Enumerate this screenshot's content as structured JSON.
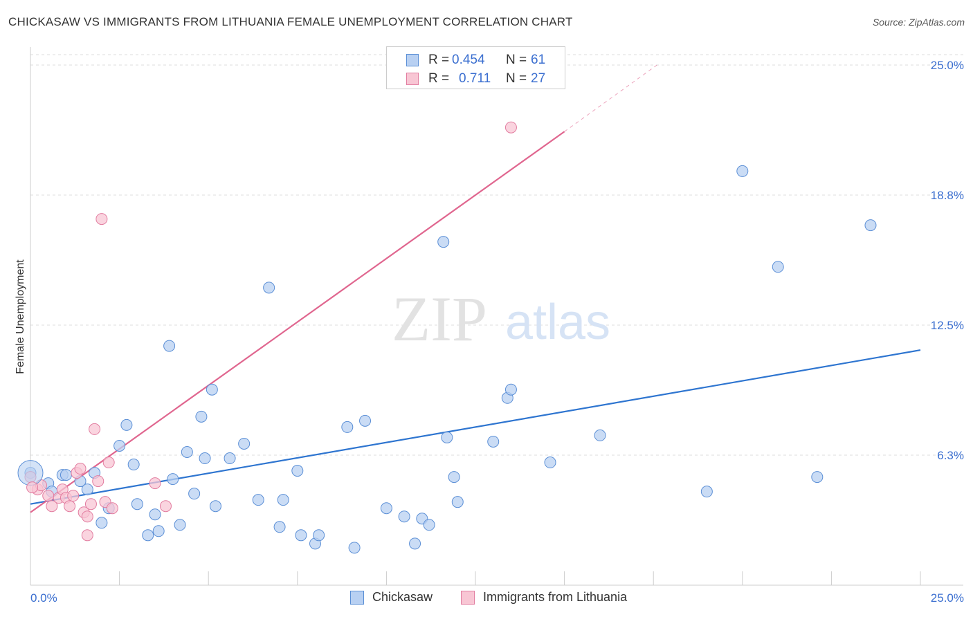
{
  "title": "CHICKASAW VS IMMIGRANTS FROM LITHUANIA FEMALE UNEMPLOYMENT CORRELATION CHART",
  "source": "Source: ZipAtlas.com",
  "watermark": {
    "zip": "ZIP",
    "atlas": "atlas"
  },
  "legend": {
    "rows": [
      {
        "r_label": "R =",
        "r_value": "0.454",
        "n_label": "N =",
        "n_value": "61",
        "fill": "#b8d0f2",
        "stroke": "#5b8fd6"
      },
      {
        "r_label": "R =",
        "r_value": "0.711",
        "n_label": "N =",
        "n_value": "27",
        "fill": "#f8c6d4",
        "stroke": "#e27da0"
      }
    ]
  },
  "bottom_legend": [
    {
      "label": "Chickasaw",
      "fill": "#b8d0f2",
      "stroke": "#5b8fd6"
    },
    {
      "label": "Immigrants from Lithuania",
      "fill": "#f8c6d4",
      "stroke": "#e27da0"
    }
  ],
  "chart_data": {
    "type": "scatter",
    "title": "CHICKASAW VS IMMIGRANTS FROM LITHUANIA FEMALE UNEMPLOYMENT CORRELATION CHART",
    "xlabel": "",
    "ylabel": "Female Unemployment",
    "xlim": [
      0,
      25
    ],
    "ylim": [
      0,
      25
    ],
    "x_tick_labels": [
      {
        "value": 0,
        "label": "0.0%"
      },
      {
        "value": 25,
        "label": "25.0%"
      }
    ],
    "y_tick_labels": [
      {
        "value": 6.25,
        "label": "6.3%"
      },
      {
        "value": 12.5,
        "label": "12.5%"
      },
      {
        "value": 18.75,
        "label": "18.8%"
      },
      {
        "value": 25,
        "label": "25.0%"
      }
    ],
    "x_minor_ticks": [
      2.5,
      5,
      7.5,
      10,
      12.5,
      15,
      17.5,
      20,
      22.5,
      25
    ],
    "grid": true,
    "legend_position": "top-center",
    "series": [
      {
        "name": "Chickasaw",
        "color": "#5b8fd6",
        "fill": "#b8d0f2",
        "trendline": {
          "x": [
            0,
            25
          ],
          "y": [
            3.9,
            11.3
          ],
          "color": "#2e75d0"
        },
        "points": [
          [
            0.0,
            5.4
          ],
          [
            0.5,
            4.9
          ],
          [
            0.9,
            5.3
          ],
          [
            1.0,
            5.3
          ],
          [
            0.6,
            4.5
          ],
          [
            1.4,
            5.0
          ],
          [
            1.6,
            4.6
          ],
          [
            1.8,
            5.4
          ],
          [
            2.0,
            3.0
          ],
          [
            2.2,
            3.7
          ],
          [
            2.5,
            6.7
          ],
          [
            2.7,
            7.7
          ],
          [
            2.9,
            5.8
          ],
          [
            3.0,
            3.9
          ],
          [
            3.3,
            2.4
          ],
          [
            3.5,
            3.4
          ],
          [
            3.6,
            2.6
          ],
          [
            3.9,
            11.5
          ],
          [
            4.0,
            5.1
          ],
          [
            4.2,
            2.9
          ],
          [
            4.4,
            6.4
          ],
          [
            4.6,
            4.4
          ],
          [
            4.8,
            8.1
          ],
          [
            4.9,
            6.1
          ],
          [
            5.1,
            9.4
          ],
          [
            5.2,
            3.8
          ],
          [
            5.6,
            6.1
          ],
          [
            6.0,
            6.8
          ],
          [
            6.4,
            4.1
          ],
          [
            6.7,
            14.3
          ],
          [
            7.0,
            2.8
          ],
          [
            7.1,
            4.1
          ],
          [
            7.5,
            5.5
          ],
          [
            7.6,
            2.4
          ],
          [
            8.0,
            2.0
          ],
          [
            8.1,
            2.4
          ],
          [
            8.9,
            7.6
          ],
          [
            9.1,
            1.8
          ],
          [
            9.4,
            7.9
          ],
          [
            10.0,
            3.7
          ],
          [
            10.5,
            3.3
          ],
          [
            10.8,
            2.0
          ],
          [
            11.0,
            3.2
          ],
          [
            11.2,
            2.9
          ],
          [
            11.6,
            16.5
          ],
          [
            11.7,
            7.1
          ],
          [
            11.9,
            5.2
          ],
          [
            12.0,
            4.0
          ],
          [
            13.0,
            6.9
          ],
          [
            13.4,
            9.0
          ],
          [
            13.5,
            9.4
          ],
          [
            14.6,
            5.9
          ],
          [
            16.0,
            7.2
          ],
          [
            19.0,
            4.5
          ],
          [
            20.0,
            19.9
          ],
          [
            21.0,
            15.3
          ],
          [
            22.1,
            5.2
          ],
          [
            23.6,
            17.3
          ]
        ]
      },
      {
        "name": "Immigrants from Lithuania",
        "color": "#e27da0",
        "fill": "#f8c6d4",
        "trendline": {
          "x": [
            0,
            15
          ],
          "y": [
            3.5,
            21.8
          ],
          "color": "#e0668f",
          "dashed_extension": {
            "x": [
              15,
              17.6
            ],
            "y": [
              21.8,
              25.0
            ]
          }
        },
        "points": [
          [
            0.0,
            5.2
          ],
          [
            0.2,
            4.6
          ],
          [
            0.3,
            4.8
          ],
          [
            0.5,
            4.3
          ],
          [
            0.6,
            3.8
          ],
          [
            0.8,
            4.2
          ],
          [
            0.9,
            4.6
          ],
          [
            1.0,
            4.2
          ],
          [
            1.1,
            3.8
          ],
          [
            1.2,
            4.3
          ],
          [
            1.3,
            5.4
          ],
          [
            1.4,
            5.6
          ],
          [
            1.5,
            3.5
          ],
          [
            1.6,
            2.4
          ],
          [
            1.6,
            3.3
          ],
          [
            1.7,
            3.9
          ],
          [
            1.8,
            7.5
          ],
          [
            1.9,
            5.0
          ],
          [
            2.0,
            17.6
          ],
          [
            2.1,
            4.0
          ],
          [
            2.2,
            5.9
          ],
          [
            2.3,
            3.7
          ],
          [
            3.5,
            4.9
          ],
          [
            3.8,
            3.8
          ],
          [
            13.5,
            22.0
          ]
        ]
      }
    ]
  }
}
